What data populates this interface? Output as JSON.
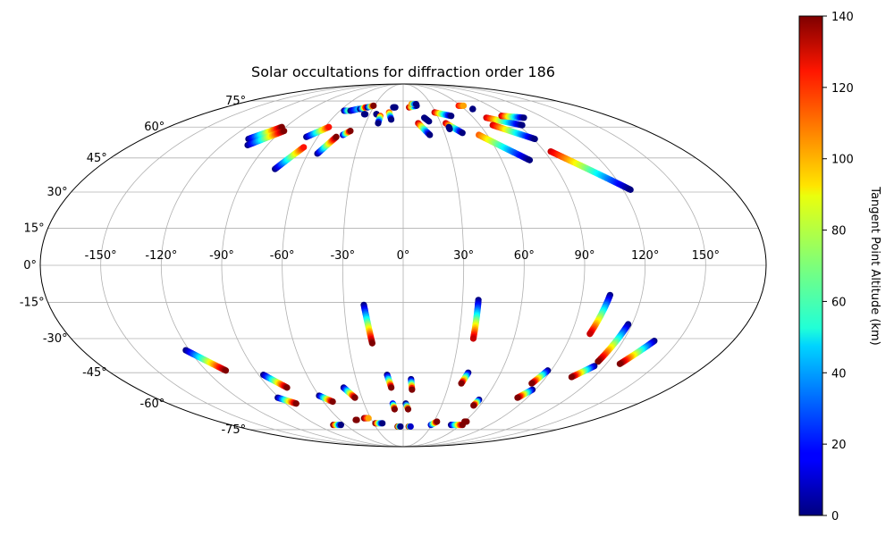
{
  "chart_data": {
    "type": "scatter",
    "projection": "mollweide",
    "title": "Solar occultations for diffraction order 186",
    "lon_ticks": [
      "-150°",
      "-120°",
      "-90°",
      "-60°",
      "-30°",
      "0°",
      "30°",
      "60°",
      "90°",
      "120°",
      "150°"
    ],
    "lon_tick_values": [
      -150,
      -120,
      -90,
      -60,
      -30,
      0,
      30,
      60,
      90,
      120,
      150
    ],
    "lat_ticks": [
      "75°",
      "60°",
      "45°",
      "30°",
      "15°",
      "0°",
      "-15°",
      "-30°",
      "-45°",
      "-60°",
      "-75°"
    ],
    "lat_tick_values": [
      75,
      60,
      45,
      30,
      15,
      0,
      -15,
      -30,
      -45,
      -60,
      -75
    ],
    "grid": true,
    "colorbar": {
      "label": "Tangent Point Altitude (km)",
      "colormap": "jet",
      "range": [
        0,
        140
      ],
      "ticks": [
        "0",
        "20",
        "40",
        "60",
        "80",
        "100",
        "120",
        "140"
      ],
      "tick_values": [
        0,
        20,
        40,
        60,
        80,
        100,
        120,
        140
      ]
    },
    "tracks": [
      {
        "start": [
          -107,
          54
        ],
        "end": [
          -93,
          60
        ],
        "alt": [
          0,
          140
        ]
      },
      {
        "start": [
          -103,
          51
        ],
        "end": [
          -88,
          58
        ],
        "alt": [
          0,
          140
        ]
      },
      {
        "start": [
          -75,
          40
        ],
        "end": [
          -65,
          50
        ],
        "alt": [
          0,
          120
        ]
      },
      {
        "start": [
          -68,
          55
        ],
        "end": [
          -57,
          60
        ],
        "alt": [
          0,
          120
        ]
      },
      {
        "start": [
          -54,
          47
        ],
        "end": [
          -47,
          55
        ],
        "alt": [
          0,
          140
        ]
      },
      {
        "start": [
          -43,
          56
        ],
        "end": [
          -39,
          58
        ],
        "alt": [
          10,
          140
        ]
      },
      {
        "start": [
          -56,
          69
        ],
        "end": [
          -52,
          69
        ],
        "alt": [
          0,
          60
        ]
      },
      {
        "start": [
          -50,
          69
        ],
        "end": [
          -44,
          70
        ],
        "alt": [
          0,
          40
        ]
      },
      {
        "start": [
          -42,
          70
        ],
        "end": [
          -38,
          71
        ],
        "alt": [
          0,
          120
        ]
      },
      {
        "start": [
          -36,
          71
        ],
        "end": [
          -31,
          72
        ],
        "alt": [
          0,
          140
        ]
      },
      {
        "start": [
          -35,
          67
        ],
        "end": [
          -34,
          67
        ],
        "alt": [
          0,
          0
        ]
      },
      {
        "start": [
          -24,
          67
        ],
        "end": [
          -24,
          67
        ],
        "alt": [
          0,
          0
        ]
      },
      {
        "start": [
          -20,
          66
        ],
        "end": [
          -20,
          62
        ],
        "alt": [
          110,
          0
        ]
      },
      {
        "start": [
          -13,
          68
        ],
        "end": [
          -10,
          64
        ],
        "alt": [
          110,
          0
        ]
      },
      {
        "start": [
          -10,
          71
        ],
        "end": [
          -8,
          71
        ],
        "alt": [
          0,
          0
        ]
      },
      {
        "start": [
          6,
          71
        ],
        "end": [
          14,
          72
        ],
        "alt": [
          130,
          0
        ]
      },
      {
        "start": [
          9,
          73
        ],
        "end": [
          14,
          73
        ],
        "alt": [
          100,
          0
        ]
      },
      {
        "start": [
          12,
          62
        ],
        "end": [
          19,
          56
        ],
        "alt": [
          130,
          0
        ]
      },
      {
        "start": [
          18,
          65
        ],
        "end": [
          21,
          63
        ],
        "alt": [
          0,
          0
        ]
      },
      {
        "start": [
          29,
          68
        ],
        "end": [
          42,
          66
        ],
        "alt": [
          130,
          0
        ]
      },
      {
        "start": [
          34,
          62
        ],
        "end": [
          43,
          57
        ],
        "alt": [
          130,
          0
        ]
      },
      {
        "start": [
          35,
          60
        ],
        "end": [
          35,
          59
        ],
        "alt": [
          0,
          0
        ]
      },
      {
        "start": [
          54,
          56
        ],
        "end": [
          77,
          44
        ],
        "alt": [
          110,
          0
        ]
      },
      {
        "start": [
          58,
          72
        ],
        "end": [
          63,
          72
        ],
        "alt": [
          120,
          100
        ]
      },
      {
        "start": [
          68,
          70
        ],
        "end": [
          68,
          70
        ],
        "alt": [
          0,
          0
        ]
      },
      {
        "start": [
          71,
          65
        ],
        "end": [
          93,
          61
        ],
        "alt": [
          130,
          0
        ]
      },
      {
        "start": [
          70,
          61
        ],
        "end": [
          91,
          54
        ],
        "alt": [
          130,
          0
        ]
      },
      {
        "start": [
          86,
          66
        ],
        "end": [
          103,
          65
        ],
        "alt": [
          130,
          0
        ]
      },
      {
        "start": [
          94,
          48
        ],
        "end": [
          124,
          31
        ],
        "alt": [
          130,
          0
        ]
      },
      {
        "start": [
          -20,
          -16
        ],
        "end": [
          -17,
          -32
        ],
        "alt": [
          0,
          140
        ]
      },
      {
        "start": [
          38,
          -14
        ],
        "end": [
          38,
          -30
        ],
        "alt": [
          0,
          130
        ]
      },
      {
        "start": [
          104,
          -12
        ],
        "end": [
          100,
          -28
        ],
        "alt": [
          0,
          130
        ]
      },
      {
        "start": [
          118,
          -24
        ],
        "end": [
          114,
          -40
        ],
        "alt": [
          0,
          140
        ]
      },
      {
        "start": [
          137,
          -31
        ],
        "end": [
          128,
          -41
        ],
        "alt": [
          0,
          140
        ]
      },
      {
        "start": [
          114,
          -42
        ],
        "end": [
          106,
          -47
        ],
        "alt": [
          0,
          140
        ]
      },
      {
        "start": [
          88,
          -44
        ],
        "end": [
          84,
          -50
        ],
        "alt": [
          0,
          140
        ]
      },
      {
        "start": [
          88,
          -53
        ],
        "end": [
          83,
          -57
        ],
        "alt": [
          0,
          140
        ]
      },
      {
        "start": [
          -122,
          -35
        ],
        "end": [
          -108,
          -44
        ],
        "alt": [
          0,
          140
        ]
      },
      {
        "start": [
          -87,
          -46
        ],
        "end": [
          -78,
          -52
        ],
        "alt": [
          0,
          140
        ]
      },
      {
        "start": [
          -91,
          -57
        ],
        "end": [
          -82,
          -60
        ],
        "alt": [
          0,
          140
        ]
      },
      {
        "start": [
          -60,
          -56
        ],
        "end": [
          -53,
          -59
        ],
        "alt": [
          0,
          140
        ]
      },
      {
        "start": [
          -40,
          -52
        ],
        "end": [
          -35,
          -57
        ],
        "alt": [
          0,
          140
        ]
      },
      {
        "start": [
          -10,
          -46
        ],
        "end": [
          -8,
          -52
        ],
        "alt": [
          0,
          140
        ]
      },
      {
        "start": [
          5,
          -48
        ],
        "end": [
          6,
          -53
        ],
        "alt": [
          0,
          140
        ]
      },
      {
        "start": [
          40,
          -45
        ],
        "end": [
          38,
          -50
        ],
        "alt": [
          0,
          140
        ]
      },
      {
        "start": [
          56,
          -58
        ],
        "end": [
          55,
          -61
        ],
        "alt": [
          0,
          140
        ]
      },
      {
        "start": [
          -8,
          -60
        ],
        "end": [
          -7,
          -63
        ],
        "alt": [
          20,
          140
        ]
      },
      {
        "start": [
          2,
          -60
        ],
        "end": [
          4,
          -63
        ],
        "alt": [
          0,
          140
        ]
      },
      {
        "start": [
          -36,
          -68
        ],
        "end": [
          -32,
          -68
        ],
        "alt": [
          140,
          100
        ]
      },
      {
        "start": [
          -45,
          -69
        ],
        "end": [
          -44,
          -69
        ],
        "alt": [
          140,
          140
        ]
      },
      {
        "start": [
          -28,
          -71
        ],
        "end": [
          -21,
          -71
        ],
        "alt": [
          140,
          0
        ]
      },
      {
        "start": [
          -73,
          -72
        ],
        "end": [
          -65,
          -72
        ],
        "alt": [
          140,
          0
        ]
      },
      {
        "start": [
          -6,
          -73
        ],
        "end": [
          -3,
          -73
        ],
        "alt": [
          140,
          0
        ]
      },
      {
        "start": [
          6,
          -73
        ],
        "end": [
          8,
          -73
        ],
        "alt": [
          140,
          10
        ]
      },
      {
        "start": [
          29,
          -72
        ],
        "end": [
          33,
          -70
        ],
        "alt": [
          10,
          140
        ]
      },
      {
        "start": [
          50,
          -72
        ],
        "end": [
          62,
          -72
        ],
        "alt": [
          0,
          140
        ]
      },
      {
        "start": [
          60,
          -70
        ],
        "end": [
          62,
          -70
        ],
        "alt": [
          140,
          140
        ]
      }
    ]
  }
}
